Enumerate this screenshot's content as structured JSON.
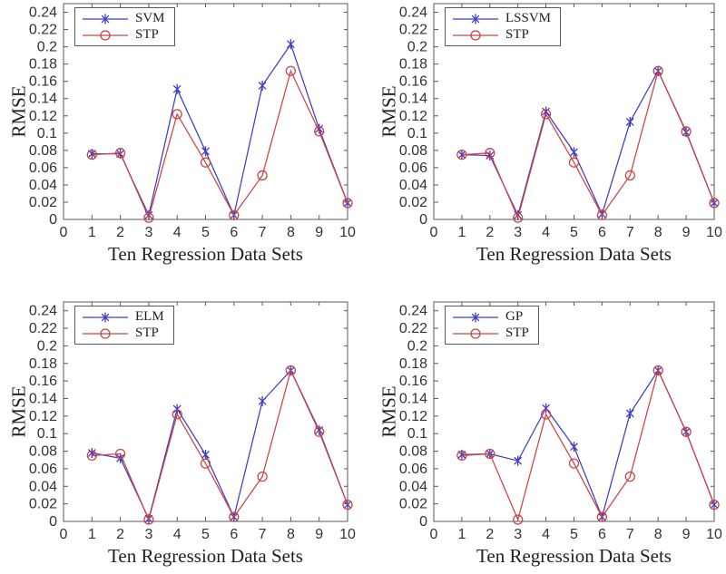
{
  "figure": {
    "background": "#ffffff",
    "axis_color": "#5a5a5a",
    "tick_text_color": "#333333",
    "label_text_color": "#222222",
    "blue_series_color": "#3d3dc6",
    "red_series_color": "#cb4545"
  },
  "chart_data": [
    {
      "type": "line",
      "title": "",
      "xlabel": "Ten Regression Data Sets",
      "ylabel": "RMSE",
      "x": [
        1,
        2,
        3,
        4,
        5,
        6,
        7,
        8,
        9,
        10
      ],
      "xlim": [
        0,
        10
      ],
      "ylim": [
        0,
        0.25
      ],
      "xticks": [
        0,
        1,
        2,
        3,
        4,
        5,
        6,
        7,
        8,
        9,
        10
      ],
      "xticklabels": [
        "0",
        "1",
        "2",
        "3",
        "4",
        "5",
        "6",
        "7",
        "8",
        "9",
        "10"
      ],
      "yticks": [
        0,
        0.02,
        0.04,
        0.06,
        0.08,
        0.1,
        0.12,
        0.14,
        0.16,
        0.18,
        0.2,
        0.22,
        0.24
      ],
      "yticklabels": [
        "0",
        "0.02",
        "0.04",
        "0.06",
        "0.08",
        "0.1",
        "0.12",
        "0.14",
        "0.16",
        "0.18",
        "0.2",
        "0.22",
        "0.24"
      ],
      "grid": false,
      "legend_position": "top-left-inside",
      "series": [
        {
          "name": "SVM",
          "color": "#3d3dc6",
          "marker": "asterisk",
          "values": [
            0.076,
            0.076,
            0.005,
            0.151,
            0.079,
            0.005,
            0.155,
            0.203,
            0.105,
            0.019
          ]
        },
        {
          "name": "STP",
          "color": "#cb4545",
          "marker": "circle",
          "values": [
            0.075,
            0.077,
            0.002,
            0.122,
            0.066,
            0.005,
            0.051,
            0.172,
            0.102,
            0.019
          ]
        }
      ]
    },
    {
      "type": "line",
      "title": "",
      "xlabel": "Ten Regression Data Sets",
      "ylabel": "RMSE",
      "x": [
        1,
        2,
        3,
        4,
        5,
        6,
        7,
        8,
        9,
        10
      ],
      "xlim": [
        0,
        10
      ],
      "ylim": [
        0,
        0.25
      ],
      "xticks": [
        0,
        1,
        2,
        3,
        4,
        5,
        6,
        7,
        8,
        9,
        10
      ],
      "xticklabels": [
        "0",
        "1",
        "2",
        "3",
        "4",
        "5",
        "6",
        "7",
        "8",
        "9",
        "10"
      ],
      "yticks": [
        0,
        0.02,
        0.04,
        0.06,
        0.08,
        0.1,
        0.12,
        0.14,
        0.16,
        0.18,
        0.2,
        0.22,
        0.24
      ],
      "yticklabels": [
        "0",
        "0.02",
        "0.04",
        "0.06",
        "0.08",
        "0.1",
        "0.12",
        "0.14",
        "0.16",
        "0.18",
        "0.2",
        "0.22",
        "0.24"
      ],
      "grid": false,
      "legend_position": "top-left-inside",
      "series": [
        {
          "name": "LSSVM",
          "color": "#3d3dc6",
          "marker": "asterisk",
          "values": [
            0.075,
            0.074,
            0.005,
            0.125,
            0.078,
            0.006,
            0.113,
            0.172,
            0.101,
            0.019
          ]
        },
        {
          "name": "STP",
          "color": "#cb4545",
          "marker": "circle",
          "values": [
            0.075,
            0.077,
            0.002,
            0.122,
            0.066,
            0.005,
            0.051,
            0.172,
            0.102,
            0.019
          ]
        }
      ]
    },
    {
      "type": "line",
      "title": "",
      "xlabel": "Ten Regression Data Sets",
      "ylabel": "RMSE",
      "x": [
        1,
        2,
        3,
        4,
        5,
        6,
        7,
        8,
        9,
        10
      ],
      "xlim": [
        0,
        10
      ],
      "ylim": [
        0,
        0.25
      ],
      "xticks": [
        0,
        1,
        2,
        3,
        4,
        5,
        6,
        7,
        8,
        9,
        10
      ],
      "xticklabels": [
        "0",
        "1",
        "2",
        "3",
        "4",
        "5",
        "6",
        "7",
        "8",
        "9",
        "10"
      ],
      "yticks": [
        0,
        0.02,
        0.04,
        0.06,
        0.08,
        0.1,
        0.12,
        0.14,
        0.16,
        0.18,
        0.2,
        0.22,
        0.24
      ],
      "yticklabels": [
        "0",
        "0.02",
        "0.04",
        "0.06",
        "0.08",
        "0.1",
        "0.12",
        "0.14",
        "0.16",
        "0.18",
        "0.2",
        "0.22",
        "0.24"
      ],
      "grid": false,
      "legend_position": "top-left-inside",
      "series": [
        {
          "name": "ELM",
          "color": "#3d3dc6",
          "marker": "asterisk",
          "values": [
            0.078,
            0.072,
            0.003,
            0.128,
            0.076,
            0.005,
            0.137,
            0.172,
            0.104,
            0.019
          ]
        },
        {
          "name": "STP",
          "color": "#cb4545",
          "marker": "circle",
          "values": [
            0.075,
            0.077,
            0.002,
            0.122,
            0.066,
            0.005,
            0.051,
            0.172,
            0.102,
            0.019
          ]
        }
      ]
    },
    {
      "type": "line",
      "title": "",
      "xlabel": "Ten Regression Data Sets",
      "ylabel": "RMSE",
      "x": [
        1,
        2,
        3,
        4,
        5,
        6,
        7,
        8,
        9,
        10
      ],
      "xlim": [
        0,
        10
      ],
      "ylim": [
        0,
        0.25
      ],
      "xticks": [
        0,
        1,
        2,
        3,
        4,
        5,
        6,
        7,
        8,
        9,
        10
      ],
      "xticklabels": [
        "0",
        "1",
        "2",
        "3",
        "4",
        "5",
        "6",
        "7",
        "8",
        "9",
        "10"
      ],
      "yticks": [
        0,
        0.02,
        0.04,
        0.06,
        0.08,
        0.1,
        0.12,
        0.14,
        0.16,
        0.18,
        0.2,
        0.22,
        0.24
      ],
      "yticklabels": [
        "0",
        "0.02",
        "0.04",
        "0.06",
        "0.08",
        "0.1",
        "0.12",
        "0.14",
        "0.16",
        "0.18",
        "0.2",
        "0.22",
        "0.24"
      ],
      "grid": false,
      "legend_position": "top-left-inside",
      "series": [
        {
          "name": "GP",
          "color": "#3d3dc6",
          "marker": "asterisk",
          "values": [
            0.076,
            0.077,
            0.069,
            0.129,
            0.085,
            0.005,
            0.123,
            0.172,
            0.102,
            0.019
          ]
        },
        {
          "name": "STP",
          "color": "#cb4545",
          "marker": "circle",
          "values": [
            0.075,
            0.077,
            0.002,
            0.122,
            0.066,
            0.005,
            0.051,
            0.172,
            0.102,
            0.019
          ]
        }
      ]
    }
  ]
}
